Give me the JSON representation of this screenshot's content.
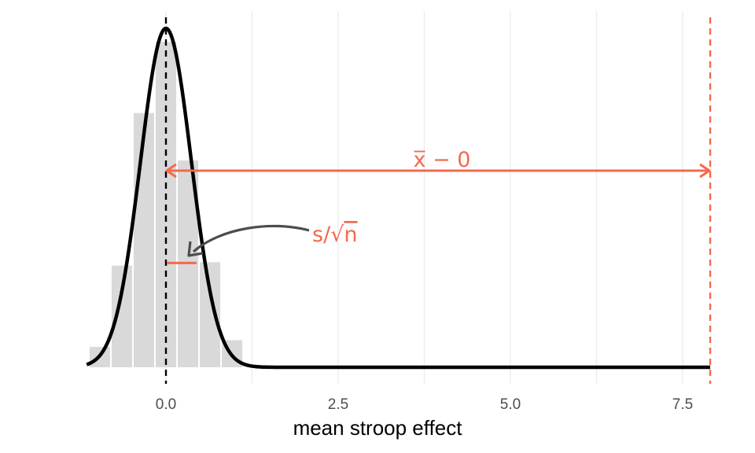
{
  "chart_data": {
    "type": "bar",
    "xlabel": "mean stroop effect",
    "ylabel": "",
    "xlim": [
      -1.15,
      7.95
    ],
    "x_ticks": [
      "0.0",
      "2.5",
      "5.0",
      "7.5"
    ],
    "x_tick_values": [
      0.0,
      2.5,
      5.0,
      7.5
    ],
    "x_minor_gridlines": [
      1.25,
      3.75,
      6.25
    ],
    "grid": true,
    "histogram": {
      "bin_width": 0.32,
      "bins_x": [
        -0.96,
        -0.64,
        -0.32,
        0.0,
        0.32,
        0.64,
        0.96
      ],
      "heights": [
        0.06,
        0.3,
        0.75,
        0.96,
        0.61,
        0.31,
        0.08
      ],
      "color": "#d9d9d9"
    },
    "density_curve": {
      "mean": 0.0,
      "sd": 0.37,
      "peak": 1.0,
      "x_range": [
        -1.15,
        7.9
      ],
      "color": "#000000"
    },
    "reference_lines": [
      {
        "x": 0.0,
        "style": "dashed",
        "color": "#000000"
      },
      {
        "x": 7.9,
        "style": "dashed",
        "color": "#f4694c"
      }
    ],
    "annotations": [
      {
        "id": "xbar",
        "text_main": "x̅",
        "text_rest": " − 0",
        "color": "#f4694c",
        "arrow_from": 0.0,
        "arrow_to": 7.9,
        "arrow_level": 0.58
      },
      {
        "id": "se",
        "text_main": "s",
        "text_slash": "/",
        "text_sqrt": "√",
        "text_n": "n",
        "color": "#f4694c",
        "segment_from": 0.0,
        "segment_to": 0.42,
        "segment_level": 0.31
      },
      {
        "id": "curved-arrow",
        "color": "#4d4d4d"
      }
    ]
  }
}
